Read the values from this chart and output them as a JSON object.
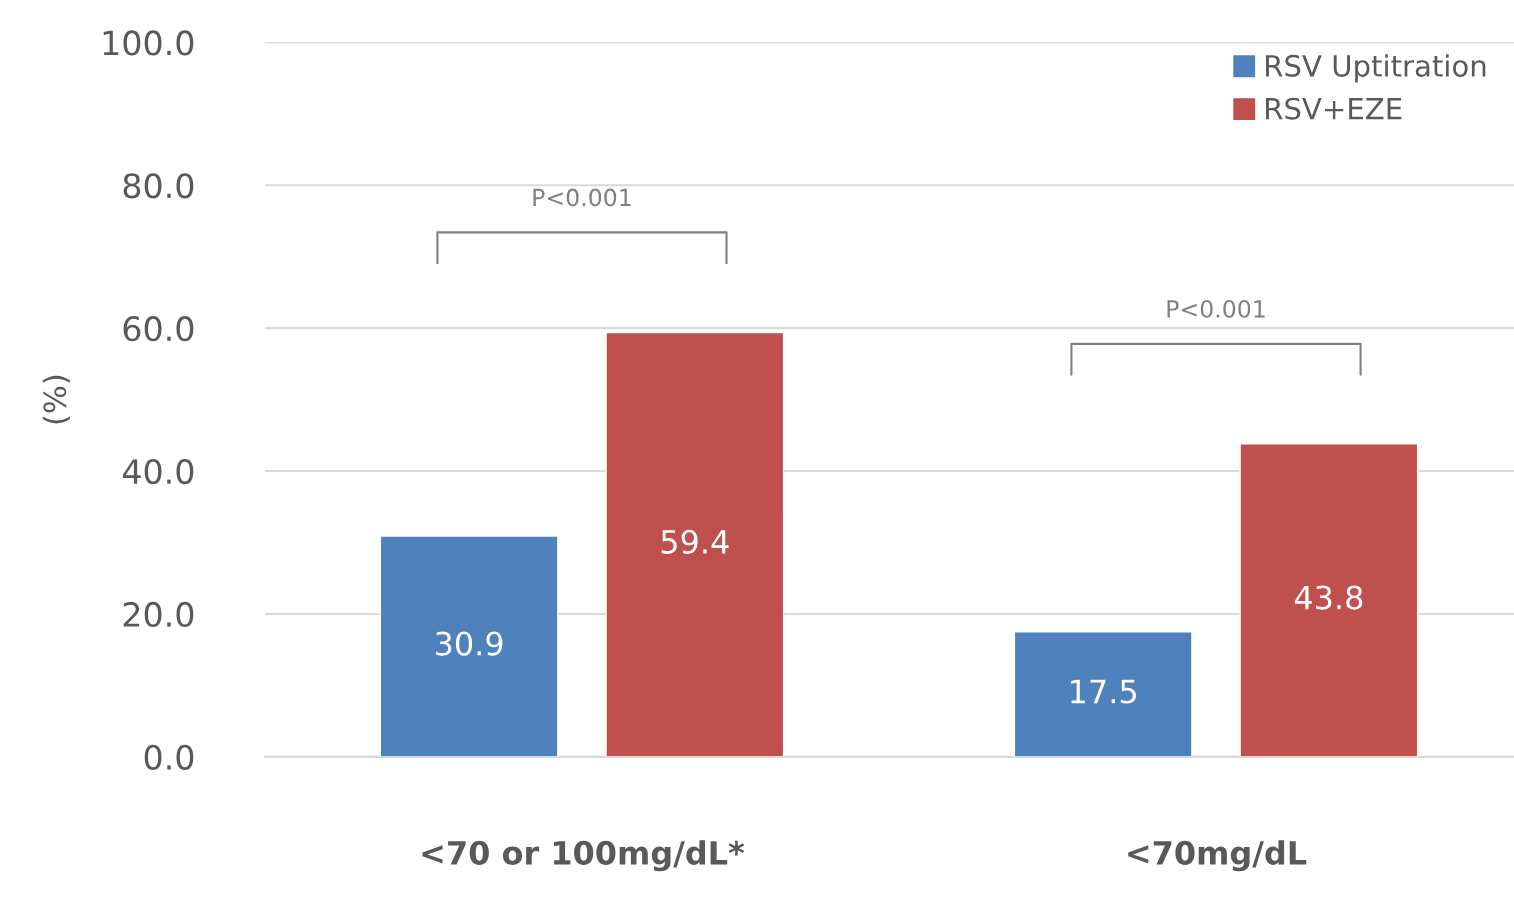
{
  "chart_data": {
    "type": "bar",
    "ylabel": "(%)",
    "categories": [
      "<70 or 100mg/dL*",
      "<70mg/dL"
    ],
    "series": [
      {
        "name": "RSV Uptitration",
        "color": "#4f81bd",
        "values": [
          30.9,
          17.5
        ]
      },
      {
        "name": "RSV+EZE",
        "color": "#c0504d",
        "values": [
          59.4,
          43.8
        ]
      }
    ],
    "ylim": [
      0,
      100
    ],
    "yticks": [
      {
        "value": 0,
        "label": "0.0"
      },
      {
        "value": 20,
        "label": "20.0"
      },
      {
        "value": 40,
        "label": "40.0"
      },
      {
        "value": 60,
        "label": "60.0"
      },
      {
        "value": 80,
        "label": "80.0"
      },
      {
        "value": 100,
        "label": "100.0"
      }
    ],
    "grid": "y",
    "legend": "top right",
    "data_labels": true,
    "annotations": [
      "P<0.001",
      "P<0.001"
    ]
  }
}
